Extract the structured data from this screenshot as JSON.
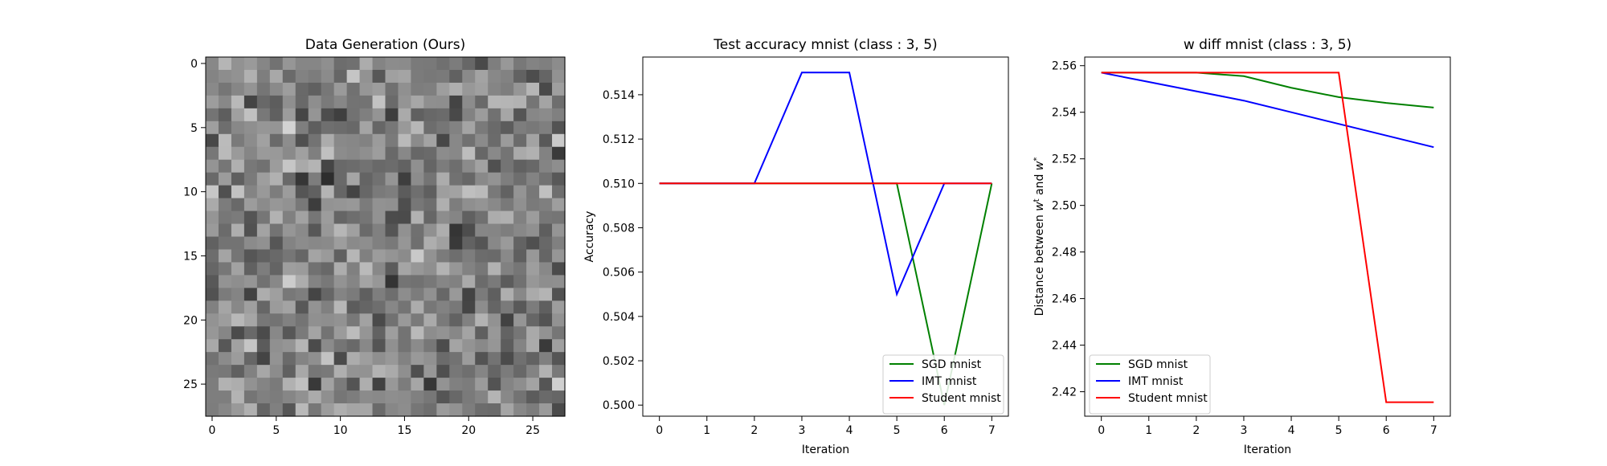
{
  "chart_data": [
    {
      "type": "heatmap",
      "title": "Data Generation (Ours)",
      "colormap": "gray",
      "rows": 28,
      "cols": 28,
      "xticks": [
        0,
        5,
        10,
        15,
        20,
        25
      ],
      "yticks": [
        0,
        5,
        10,
        15,
        20,
        25
      ],
      "note_values": "random grayscale noise image (values approximated)"
    },
    {
      "type": "line",
      "title": "Test accuracy mnist (class : 3, 5)",
      "xlabel": "Iteration",
      "ylabel": "Accuracy",
      "x": [
        0,
        1,
        2,
        3,
        4,
        5,
        6,
        7
      ],
      "xlim": [
        -0.35,
        7.35
      ],
      "ylim": [
        0.4995,
        0.5157
      ],
      "yticks": [
        0.5,
        0.502,
        0.504,
        0.506,
        0.508,
        0.51,
        0.512,
        0.514
      ],
      "legend": "lower-right",
      "series": [
        {
          "name": "SGD mnist",
          "color": "#008000",
          "values": [
            0.51,
            0.51,
            0.51,
            0.51,
            0.51,
            0.51,
            0.5,
            0.51
          ]
        },
        {
          "name": "IMT mnist",
          "color": "#0000ff",
          "values": [
            0.51,
            0.51,
            0.51,
            0.515,
            0.515,
            0.505,
            0.51,
            0.51
          ]
        },
        {
          "name": "Student mnist",
          "color": "#ff0000",
          "values": [
            0.51,
            0.51,
            0.51,
            0.51,
            0.51,
            0.51,
            0.51,
            0.51
          ]
        }
      ]
    },
    {
      "type": "line",
      "title": "w diff mnist (class : 3, 5)",
      "xlabel": "Iteration",
      "ylabel": "Distance between w^t and w^*",
      "x": [
        0,
        1,
        2,
        3,
        4,
        5,
        6,
        7
      ],
      "xlim": [
        -0.35,
        7.35
      ],
      "ylim": [
        2.4095,
        2.5637
      ],
      "yticks": [
        2.42,
        2.44,
        2.46,
        2.48,
        2.5,
        2.52,
        2.54,
        2.56
      ],
      "legend": "lower-left",
      "series": [
        {
          "name": "SGD mnist",
          "color": "#008000",
          "values": [
            2.557,
            2.557,
            2.557,
            2.5555,
            2.5505,
            2.5465,
            2.544,
            2.542
          ]
        },
        {
          "name": "IMT mnist",
          "color": "#0000ff",
          "values": [
            2.557,
            2.553,
            2.549,
            2.545,
            2.54,
            2.535,
            2.53,
            2.525
          ]
        },
        {
          "name": "Student mnist",
          "color": "#ff0000",
          "values": [
            2.557,
            2.557,
            2.557,
            2.557,
            2.557,
            2.557,
            2.4155,
            2.4155
          ]
        }
      ]
    }
  ]
}
